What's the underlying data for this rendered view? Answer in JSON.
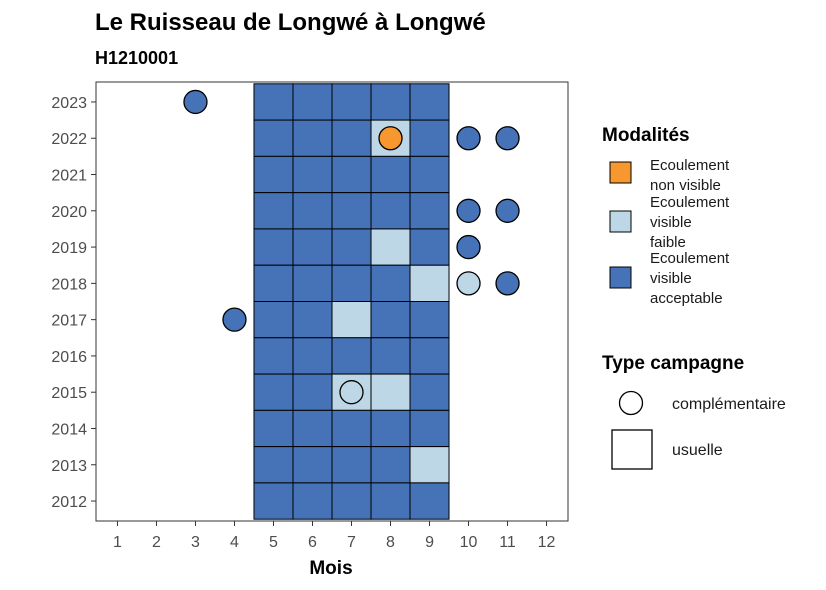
{
  "chart_data": {
    "type": "heatmap",
    "title": "Le Ruisseau de Longwé à Longwé",
    "subtitle": "H1210001",
    "xlabel": "Mois",
    "ylabel": "",
    "x_ticks": [
      1,
      2,
      3,
      4,
      5,
      6,
      7,
      8,
      9,
      10,
      11,
      12
    ],
    "y_ticks": [
      2012,
      2013,
      2014,
      2015,
      2016,
      2017,
      2018,
      2019,
      2020,
      2021,
      2022,
      2023
    ],
    "grid": false,
    "legend_placement": "right",
    "colors": {
      "Ecoulement non visible": "#f7972f",
      "Ecoulement visible faible": "#bdd7e7",
      "Ecoulement visible acceptable": "#4673b8"
    },
    "legend": {
      "modalites_title": "Modalités",
      "modalites": [
        {
          "key": "Ecoulement non visible",
          "lines": [
            "Ecoulement",
            "non visible"
          ]
        },
        {
          "key": "Ecoulement visible faible",
          "lines": [
            "Ecoulement",
            "visible",
            "faible"
          ]
        },
        {
          "key": "Ecoulement visible acceptable",
          "lines": [
            "Ecoulement",
            "visible",
            "acceptable"
          ]
        }
      ],
      "type_title": "Type campagne",
      "types": [
        {
          "shape": "circle",
          "label": "complémentaire"
        },
        {
          "shape": "square",
          "label": "usuelle"
        }
      ]
    },
    "usuelle": [
      {
        "year": 2023,
        "month": 5,
        "value": "Ecoulement visible acceptable"
      },
      {
        "year": 2023,
        "month": 6,
        "value": "Ecoulement visible acceptable"
      },
      {
        "year": 2023,
        "month": 7,
        "value": "Ecoulement visible acceptable"
      },
      {
        "year": 2023,
        "month": 8,
        "value": "Ecoulement visible acceptable"
      },
      {
        "year": 2023,
        "month": 9,
        "value": "Ecoulement visible acceptable"
      },
      {
        "year": 2022,
        "month": 5,
        "value": "Ecoulement visible acceptable"
      },
      {
        "year": 2022,
        "month": 6,
        "value": "Ecoulement visible acceptable"
      },
      {
        "year": 2022,
        "month": 7,
        "value": "Ecoulement visible acceptable"
      },
      {
        "year": 2022,
        "month": 8,
        "value": "Ecoulement visible faible"
      },
      {
        "year": 2022,
        "month": 9,
        "value": "Ecoulement visible acceptable"
      },
      {
        "year": 2021,
        "month": 5,
        "value": "Ecoulement visible acceptable"
      },
      {
        "year": 2021,
        "month": 6,
        "value": "Ecoulement visible acceptable"
      },
      {
        "year": 2021,
        "month": 7,
        "value": "Ecoulement visible acceptable"
      },
      {
        "year": 2021,
        "month": 8,
        "value": "Ecoulement visible acceptable"
      },
      {
        "year": 2021,
        "month": 9,
        "value": "Ecoulement visible acceptable"
      },
      {
        "year": 2020,
        "month": 5,
        "value": "Ecoulement visible acceptable"
      },
      {
        "year": 2020,
        "month": 6,
        "value": "Ecoulement visible acceptable"
      },
      {
        "year": 2020,
        "month": 7,
        "value": "Ecoulement visible acceptable"
      },
      {
        "year": 2020,
        "month": 8,
        "value": "Ecoulement visible acceptable"
      },
      {
        "year": 2020,
        "month": 9,
        "value": "Ecoulement visible acceptable"
      },
      {
        "year": 2019,
        "month": 5,
        "value": "Ecoulement visible acceptable"
      },
      {
        "year": 2019,
        "month": 6,
        "value": "Ecoulement visible acceptable"
      },
      {
        "year": 2019,
        "month": 7,
        "value": "Ecoulement visible acceptable"
      },
      {
        "year": 2019,
        "month": 8,
        "value": "Ecoulement visible faible"
      },
      {
        "year": 2019,
        "month": 9,
        "value": "Ecoulement visible acceptable"
      },
      {
        "year": 2018,
        "month": 5,
        "value": "Ecoulement visible acceptable"
      },
      {
        "year": 2018,
        "month": 6,
        "value": "Ecoulement visible acceptable"
      },
      {
        "year": 2018,
        "month": 7,
        "value": "Ecoulement visible acceptable"
      },
      {
        "year": 2018,
        "month": 8,
        "value": "Ecoulement visible acceptable"
      },
      {
        "year": 2018,
        "month": 9,
        "value": "Ecoulement visible faible"
      },
      {
        "year": 2017,
        "month": 5,
        "value": "Ecoulement visible acceptable"
      },
      {
        "year": 2017,
        "month": 6,
        "value": "Ecoulement visible acceptable"
      },
      {
        "year": 2017,
        "month": 7,
        "value": "Ecoulement visible faible"
      },
      {
        "year": 2017,
        "month": 8,
        "value": "Ecoulement visible acceptable"
      },
      {
        "year": 2017,
        "month": 9,
        "value": "Ecoulement visible acceptable"
      },
      {
        "year": 2016,
        "month": 5,
        "value": "Ecoulement visible acceptable"
      },
      {
        "year": 2016,
        "month": 6,
        "value": "Ecoulement visible acceptable"
      },
      {
        "year": 2016,
        "month": 7,
        "value": "Ecoulement visible acceptable"
      },
      {
        "year": 2016,
        "month": 8,
        "value": "Ecoulement visible acceptable"
      },
      {
        "year": 2016,
        "month": 9,
        "value": "Ecoulement visible acceptable"
      },
      {
        "year": 2015,
        "month": 5,
        "value": "Ecoulement visible acceptable"
      },
      {
        "year": 2015,
        "month": 6,
        "value": "Ecoulement visible acceptable"
      },
      {
        "year": 2015,
        "month": 7,
        "value": "Ecoulement visible faible"
      },
      {
        "year": 2015,
        "month": 8,
        "value": "Ecoulement visible faible"
      },
      {
        "year": 2015,
        "month": 9,
        "value": "Ecoulement visible acceptable"
      },
      {
        "year": 2014,
        "month": 5,
        "value": "Ecoulement visible acceptable"
      },
      {
        "year": 2014,
        "month": 6,
        "value": "Ecoulement visible acceptable"
      },
      {
        "year": 2014,
        "month": 7,
        "value": "Ecoulement visible acceptable"
      },
      {
        "year": 2014,
        "month": 8,
        "value": "Ecoulement visible acceptable"
      },
      {
        "year": 2014,
        "month": 9,
        "value": "Ecoulement visible acceptable"
      },
      {
        "year": 2013,
        "month": 5,
        "value": "Ecoulement visible acceptable"
      },
      {
        "year": 2013,
        "month": 6,
        "value": "Ecoulement visible acceptable"
      },
      {
        "year": 2013,
        "month": 7,
        "value": "Ecoulement visible acceptable"
      },
      {
        "year": 2013,
        "month": 8,
        "value": "Ecoulement visible acceptable"
      },
      {
        "year": 2013,
        "month": 9,
        "value": "Ecoulement visible faible"
      },
      {
        "year": 2012,
        "month": 5,
        "value": "Ecoulement visible acceptable"
      },
      {
        "year": 2012,
        "month": 6,
        "value": "Ecoulement visible acceptable"
      },
      {
        "year": 2012,
        "month": 7,
        "value": "Ecoulement visible acceptable"
      },
      {
        "year": 2012,
        "month": 8,
        "value": "Ecoulement visible acceptable"
      },
      {
        "year": 2012,
        "month": 9,
        "value": "Ecoulement visible acceptable"
      }
    ],
    "complementaire": [
      {
        "year": 2023,
        "month": 3,
        "value": "Ecoulement visible acceptable"
      },
      {
        "year": 2022,
        "month": 8,
        "value": "Ecoulement non visible"
      },
      {
        "year": 2022,
        "month": 10,
        "value": "Ecoulement visible acceptable"
      },
      {
        "year": 2022,
        "month": 11,
        "value": "Ecoulement visible acceptable"
      },
      {
        "year": 2020,
        "month": 10,
        "value": "Ecoulement visible acceptable"
      },
      {
        "year": 2020,
        "month": 11,
        "value": "Ecoulement visible acceptable"
      },
      {
        "year": 2019,
        "month": 10,
        "value": "Ecoulement visible acceptable"
      },
      {
        "year": 2018,
        "month": 10,
        "value": "Ecoulement visible faible"
      },
      {
        "year": 2018,
        "month": 11,
        "value": "Ecoulement visible acceptable"
      },
      {
        "year": 2017,
        "month": 4,
        "value": "Ecoulement visible acceptable"
      },
      {
        "year": 2015,
        "month": 7,
        "value": "Ecoulement visible faible"
      }
    ]
  }
}
